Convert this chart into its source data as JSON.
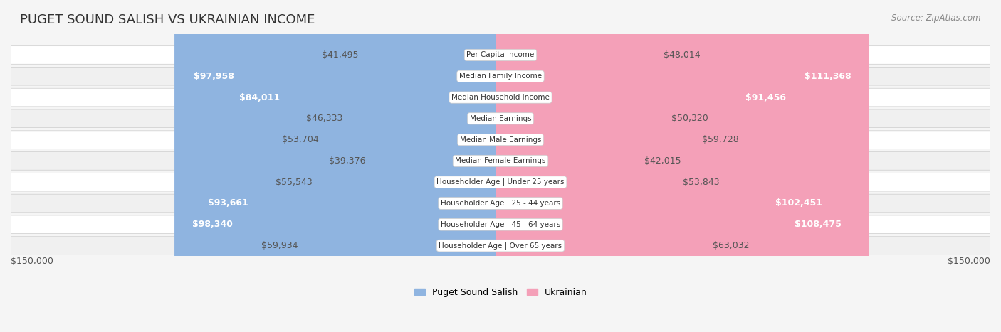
{
  "title": "PUGET SOUND SALISH VS UKRAINIAN INCOME",
  "source": "Source: ZipAtlas.com",
  "categories": [
    "Per Capita Income",
    "Median Family Income",
    "Median Household Income",
    "Median Earnings",
    "Median Male Earnings",
    "Median Female Earnings",
    "Householder Age | Under 25 years",
    "Householder Age | 25 - 44 years",
    "Householder Age | 45 - 64 years",
    "Householder Age | Over 65 years"
  ],
  "left_values": [
    41495,
    97958,
    84011,
    46333,
    53704,
    39376,
    55543,
    93661,
    98340,
    59934
  ],
  "right_values": [
    48014,
    111368,
    91456,
    50320,
    59728,
    42015,
    53843,
    102451,
    108475,
    63032
  ],
  "left_labels": [
    "$41,495",
    "$97,958",
    "$84,011",
    "$46,333",
    "$53,704",
    "$39,376",
    "$55,543",
    "$93,661",
    "$98,340",
    "$59,934"
  ],
  "right_labels": [
    "$48,014",
    "$111,368",
    "$91,456",
    "$50,320",
    "$59,728",
    "$42,015",
    "$53,843",
    "$102,451",
    "$108,475",
    "$63,032"
  ],
  "left_color": "#8fb4e0",
  "right_color": "#f4a0b8",
  "left_dark_color": "#5a8fc8",
  "right_dark_color": "#f06090",
  "max_value": 150000,
  "legend_left": "Puget Sound Salish",
  "legend_right": "Ukrainian",
  "bg_color": "#f5f5f5",
  "row_bg_color": "#ffffff",
  "row_alt_bg_color": "#f0f0f0",
  "title_fontsize": 13,
  "label_fontsize": 9,
  "axis_label_fontsize": 9,
  "source_fontsize": 8.5
}
